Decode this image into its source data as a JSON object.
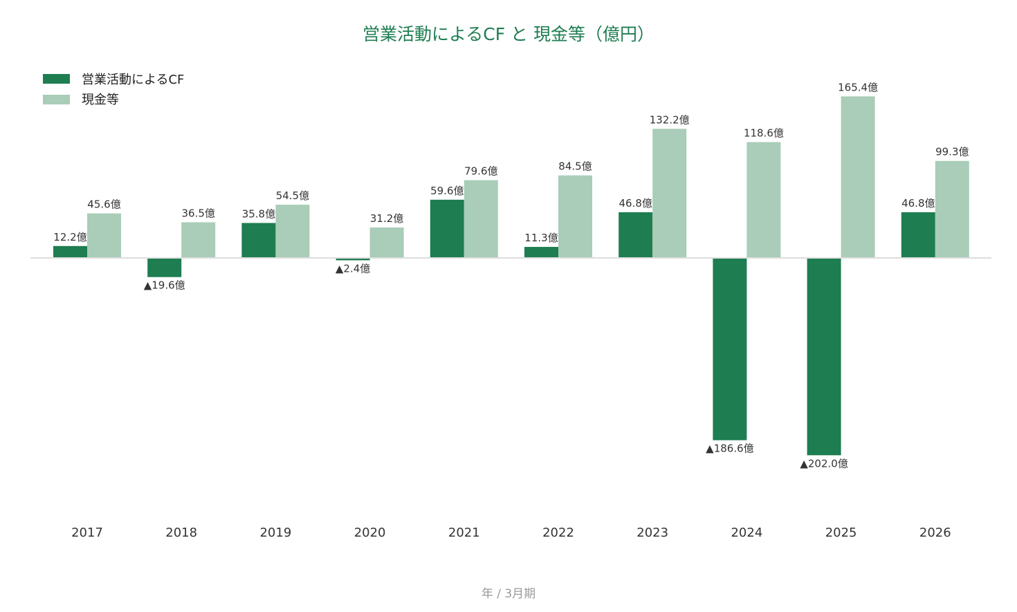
{
  "chart_data": {
    "type": "bar",
    "title": "営業活動によるCF と 現金等（億円）",
    "xlabel": "年 / 3月期",
    "ylabel": "",
    "categories": [
      "2017",
      "2018",
      "2019",
      "2020",
      "2021",
      "2022",
      "2023",
      "2024",
      "2025",
      "2026"
    ],
    "series": [
      {
        "name": "営業活動によるCF",
        "color": "#1e7d51",
        "values": [
          12.2,
          -19.6,
          35.8,
          -2.4,
          59.6,
          11.3,
          46.8,
          -186.6,
          -202.0,
          46.8
        ],
        "labels": [
          "12.2億",
          "▲19.6億",
          "35.8億",
          "▲2.4億",
          "59.6億",
          "11.3億",
          "46.8億",
          "▲186.6億",
          "▲202.0億",
          "46.8億"
        ]
      },
      {
        "name": "現金等",
        "color": "#a9cdb8",
        "values": [
          45.6,
          36.5,
          54.5,
          31.2,
          79.6,
          84.5,
          132.2,
          118.6,
          165.4,
          99.3
        ],
        "labels": [
          "45.6億",
          "36.5億",
          "54.5億",
          "31.2億",
          "79.6億",
          "84.5億",
          "132.2億",
          "118.6億",
          "165.4億",
          "99.3億"
        ]
      }
    ],
    "ylim": [
      -260,
      180
    ],
    "legend_position": "top-left",
    "grid": false,
    "zero_line_color": "#dddddd"
  }
}
